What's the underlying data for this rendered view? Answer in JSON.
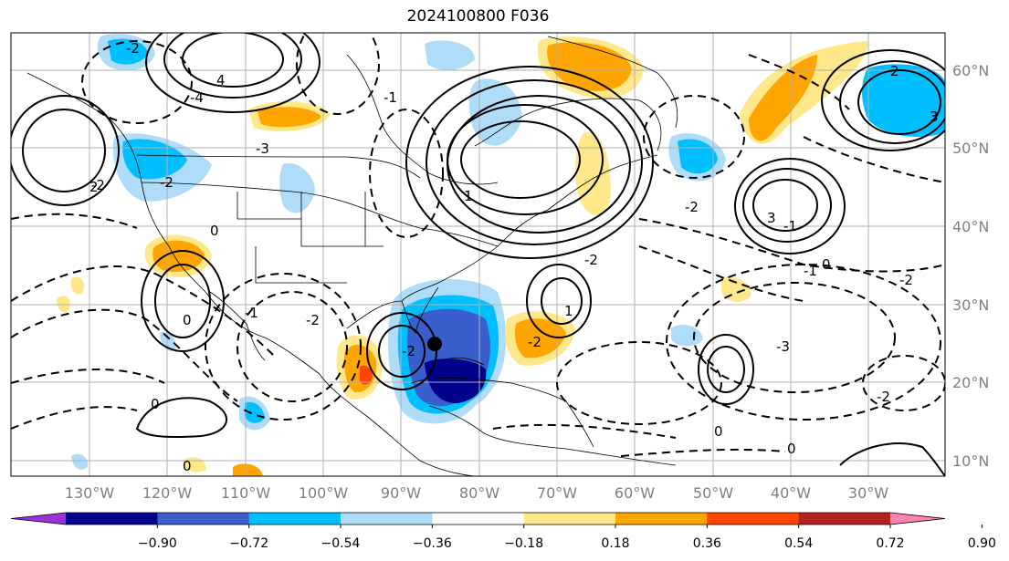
{
  "title": "2024100800 F036",
  "lat_labels": [
    "60°N",
    "50°N",
    "40°N",
    "30°N",
    "20°N",
    "10°N"
  ],
  "lon_labels": [
    "130°W",
    "120°W",
    "110°W",
    "100°W",
    "90°W",
    "80°W",
    "70°W",
    "60°W",
    "50°W",
    "40°W",
    "30°W"
  ],
  "colorbar": {
    "ticks": [
      "−0.90",
      "−0.72",
      "−0.54",
      "−0.36",
      "−0.18",
      "0.18",
      "0.36",
      "0.54",
      "0.72",
      "0.90"
    ],
    "colors": [
      "#9b30d9",
      "#00008b",
      "#3a5fcd",
      "#00bfff",
      "#afdcf8",
      "#ffffff",
      "#ffe88a",
      "#ffa500",
      "#ff4500",
      "#b22222",
      "#ff83b0"
    ]
  },
  "contour_labels": [
    "-2",
    "-4",
    "4",
    "-2",
    "-2",
    "-3",
    "2",
    "3",
    "-2",
    "-1",
    "-1",
    "1",
    "-2",
    "-1",
    "0",
    "-2",
    "-3",
    "0",
    "-2",
    "0",
    "2",
    "-2",
    "1",
    "0",
    "0",
    "0",
    "0",
    "-1",
    "-2",
    "3",
    "-2"
  ],
  "marker": "storm-center-marker"
}
